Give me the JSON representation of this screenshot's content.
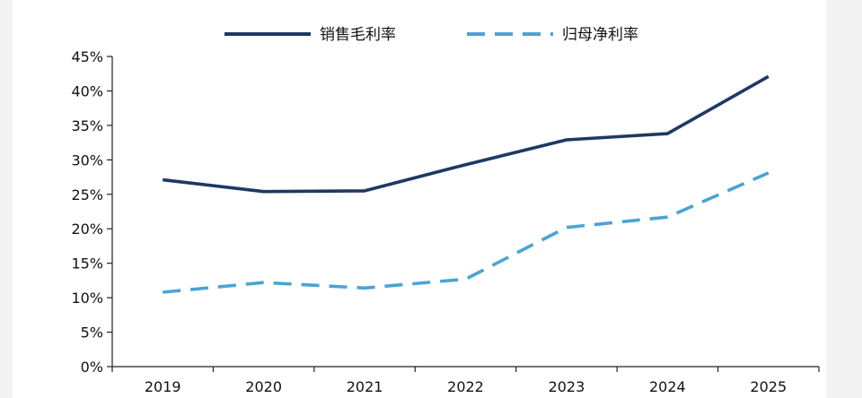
{
  "chart_data": {
    "type": "line",
    "x": [
      "2019",
      "2020",
      "2021",
      "2022",
      "2023",
      "2024",
      "2025"
    ],
    "ylim": [
      0,
      45
    ],
    "yticks": [
      0,
      5,
      10,
      15,
      20,
      25,
      30,
      35,
      40,
      45
    ],
    "ytick_labels": [
      "0%",
      "5%",
      "10%",
      "15%",
      "20%",
      "25%",
      "30%",
      "35%",
      "40%",
      "45%"
    ],
    "grid": false,
    "legend_position": "top",
    "series": [
      {
        "name": "销售毛利率",
        "style": "solid",
        "color": "#1f3864",
        "values": [
          27.1,
          25.4,
          25.5,
          29.3,
          32.9,
          33.8,
          42.1
        ]
      },
      {
        "name": "归母净利率",
        "style": "dashed",
        "color": "#4aa3d6",
        "values": [
          10.8,
          12.2,
          11.4,
          12.7,
          20.2,
          21.7,
          28.1
        ]
      }
    ]
  }
}
